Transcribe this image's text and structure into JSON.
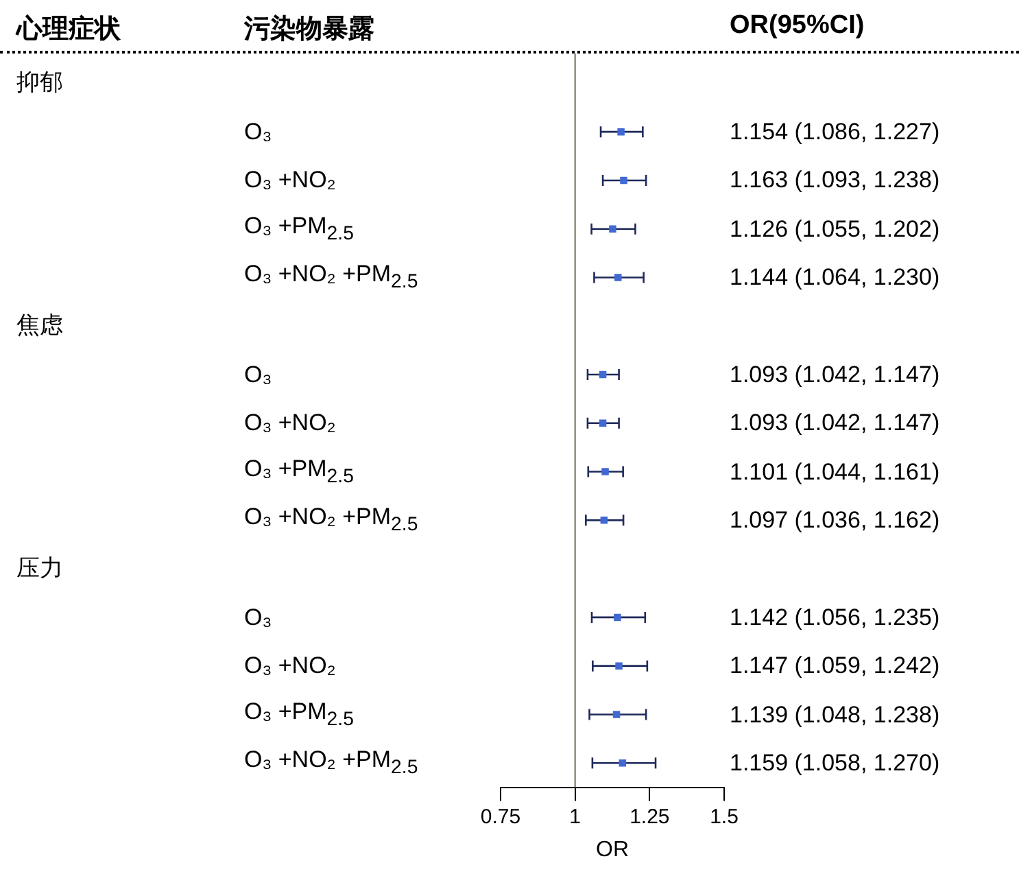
{
  "chart_data": {
    "type": "scatter",
    "orientation": "horizontal",
    "xlabel": "OR",
    "annotations": [
      "心理症状",
      "污染物暴露",
      "OR(95%CI)",
      "抑郁",
      "焦虑",
      "压力"
    ],
    "categories": [
      null,
      "O₃",
      "O₃ +NO₂",
      "O₃ +PM$_{2.5}$",
      "O₃ +NO₂ +PM$_{2.5}$",
      null,
      "O₃",
      "O₃ +NO₂",
      "O₃ +PM$_{2.5}$",
      "O₃ +NO₂ +PM$_{2.5}$",
      null,
      "O₃",
      "O₃ +NO₂",
      "O₃ +PM$_{2.5}$",
      "O₃ +NO₂ +PM$_{2.5}$"
    ],
    "values": [
      null,
      1.154,
      1.163,
      1.126,
      1.144,
      null,
      1.093,
      1.093,
      1.101,
      1.097,
      null,
      1.142,
      1.147,
      1.139,
      1.159
    ],
    "errors": [
      null,
      [
        1.086,
        1.227
      ],
      [
        1.093,
        1.238
      ],
      [
        1.055,
        1.202
      ],
      [
        1.064,
        1.23
      ],
      null,
      [
        1.042,
        1.147
      ],
      [
        1.042,
        1.147
      ],
      [
        1.044,
        1.161
      ],
      [
        1.036,
        1.162
      ],
      null,
      [
        1.056,
        1.235
      ],
      [
        1.059,
        1.242
      ],
      [
        1.048,
        1.238
      ],
      [
        1.058,
        1.27
      ]
    ],
    "value_labels": [
      null,
      "1.154 (1.086, 1.227)",
      "1.163 (1.093, 1.238)",
      "1.126 (1.055, 1.202)",
      "1.144 (1.064, 1.230)",
      null,
      "1.093 (1.042, 1.147)",
      "1.093 (1.042, 1.147)",
      "1.101 (1.044, 1.161)",
      "1.097 (1.036, 1.162)",
      null,
      "1.142 (1.056, 1.235)",
      "1.147 (1.059, 1.242)",
      "1.139 (1.048, 1.238)",
      "1.159 (1.058, 1.270)"
    ],
    "color": "#4169d4",
    "marker": "square",
    "xlim": [
      0.75,
      1.5
    ],
    "xticks": [
      0.75,
      1,
      1.25,
      1.5
    ],
    "ref_lines": [
      {
        "axis": "x",
        "value": 1,
        "color": "#8a8a70"
      }
    ],
    "grid": false,
    "legend": false
  }
}
